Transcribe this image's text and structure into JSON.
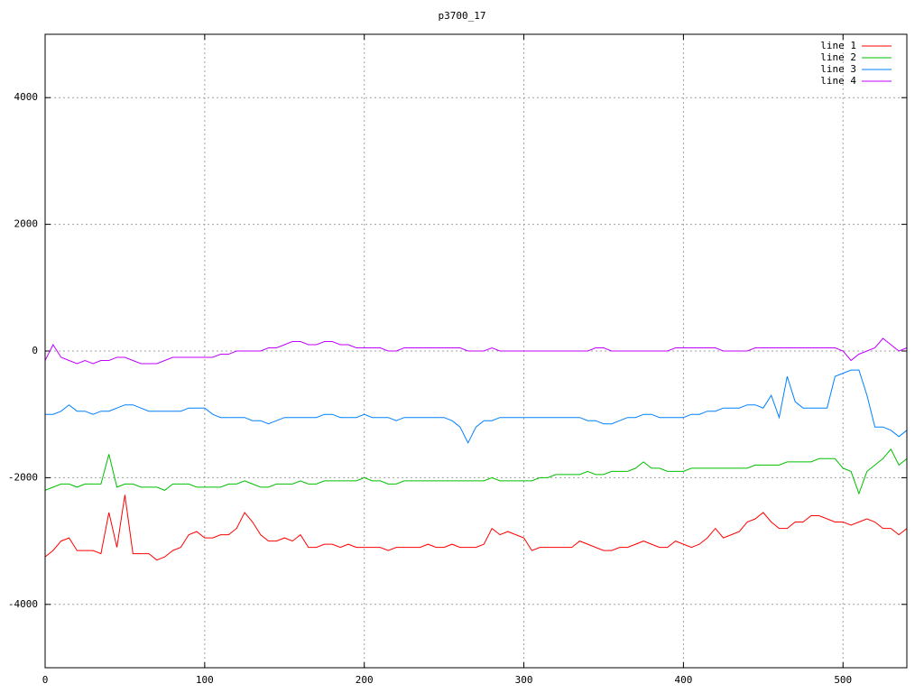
{
  "chart_data": {
    "type": "line",
    "title": "p3700_17",
    "x": [
      0,
      5,
      10,
      15,
      20,
      25,
      30,
      35,
      40,
      45,
      50,
      55,
      60,
      65,
      70,
      75,
      80,
      85,
      90,
      95,
      100,
      105,
      110,
      115,
      120,
      125,
      130,
      135,
      140,
      145,
      150,
      155,
      160,
      165,
      170,
      175,
      180,
      185,
      190,
      195,
      200,
      205,
      210,
      215,
      220,
      225,
      230,
      235,
      240,
      245,
      250,
      255,
      260,
      265,
      270,
      275,
      280,
      285,
      290,
      295,
      300,
      305,
      310,
      315,
      320,
      325,
      330,
      335,
      340,
      345,
      350,
      355,
      360,
      365,
      370,
      375,
      380,
      385,
      390,
      395,
      400,
      405,
      410,
      415,
      420,
      425,
      430,
      435,
      440,
      445,
      450,
      455,
      460,
      465,
      470,
      475,
      480,
      485,
      490,
      495,
      500,
      505,
      510,
      515,
      520,
      525,
      530,
      535,
      540
    ],
    "series": [
      {
        "name": "line 1",
        "color": "#ff0000",
        "values": [
          -3250,
          -3150,
          -3000,
          -2950,
          -3150,
          -3150,
          -3150,
          -3200,
          -2550,
          -3100,
          -2270,
          -3200,
          -3200,
          -3200,
          -3300,
          -3250,
          -3150,
          -3100,
          -2900,
          -2850,
          -2950,
          -2950,
          -2900,
          -2900,
          -2800,
          -2550,
          -2700,
          -2900,
          -3000,
          -3000,
          -2950,
          -3000,
          -2900,
          -3100,
          -3100,
          -3050,
          -3050,
          -3100,
          -3050,
          -3100,
          -3100,
          -3100,
          -3100,
          -3150,
          -3100,
          -3100,
          -3100,
          -3100,
          -3050,
          -3100,
          -3100,
          -3050,
          -3100,
          -3100,
          -3100,
          -3050,
          -2800,
          -2900,
          -2850,
          -2900,
          -2950,
          -3150,
          -3100,
          -3100,
          -3100,
          -3100,
          -3100,
          -3000,
          -3050,
          -3100,
          -3150,
          -3150,
          -3100,
          -3100,
          -3050,
          -3000,
          -3050,
          -3100,
          -3100,
          -3000,
          -3050,
          -3100,
          -3050,
          -2950,
          -2800,
          -2950,
          -2900,
          -2850,
          -2700,
          -2650,
          -2550,
          -2700,
          -2800,
          -2800,
          -2700,
          -2700,
          -2600,
          -2600,
          -2650,
          -2700,
          -2700,
          -2750,
          -2700,
          -2650,
          -2700,
          -2800,
          -2800,
          -2900,
          -2800
        ]
      },
      {
        "name": "line 2",
        "color": "#00c000",
        "values": [
          -2200,
          -2150,
          -2100,
          -2100,
          -2150,
          -2100,
          -2100,
          -2100,
          -1630,
          -2150,
          -2100,
          -2100,
          -2150,
          -2150,
          -2150,
          -2200,
          -2100,
          -2100,
          -2100,
          -2150,
          -2150,
          -2150,
          -2150,
          -2100,
          -2100,
          -2050,
          -2100,
          -2150,
          -2150,
          -2100,
          -2100,
          -2100,
          -2050,
          -2100,
          -2100,
          -2050,
          -2050,
          -2050,
          -2050,
          -2050,
          -2000,
          -2050,
          -2050,
          -2100,
          -2100,
          -2050,
          -2050,
          -2050,
          -2050,
          -2050,
          -2050,
          -2050,
          -2050,
          -2050,
          -2050,
          -2050,
          -2000,
          -2050,
          -2050,
          -2050,
          -2050,
          -2050,
          -2000,
          -2000,
          -1950,
          -1950,
          -1950,
          -1950,
          -1900,
          -1950,
          -1950,
          -1900,
          -1900,
          -1900,
          -1850,
          -1750,
          -1850,
          -1850,
          -1900,
          -1900,
          -1900,
          -1850,
          -1850,
          -1850,
          -1850,
          -1850,
          -1850,
          -1850,
          -1850,
          -1800,
          -1800,
          -1800,
          -1800,
          -1750,
          -1750,
          -1750,
          -1750,
          -1700,
          -1700,
          -1700,
          -1850,
          -1900,
          -2250,
          -1900,
          -1800,
          -1700,
          -1550,
          -1800,
          -1700
        ]
      },
      {
        "name": "line 3",
        "color": "#0080ff",
        "values": [
          -1000,
          -1000,
          -950,
          -850,
          -950,
          -950,
          -1000,
          -950,
          -950,
          -900,
          -850,
          -850,
          -900,
          -950,
          -950,
          -950,
          -950,
          -950,
          -900,
          -900,
          -900,
          -1000,
          -1050,
          -1050,
          -1050,
          -1050,
          -1100,
          -1100,
          -1150,
          -1100,
          -1050,
          -1050,
          -1050,
          -1050,
          -1050,
          -1000,
          -1000,
          -1050,
          -1050,
          -1050,
          -1000,
          -1050,
          -1050,
          -1050,
          -1100,
          -1050,
          -1050,
          -1050,
          -1050,
          -1050,
          -1050,
          -1100,
          -1200,
          -1450,
          -1200,
          -1100,
          -1100,
          -1050,
          -1050,
          -1050,
          -1050,
          -1050,
          -1050,
          -1050,
          -1050,
          -1050,
          -1050,
          -1050,
          -1100,
          -1100,
          -1150,
          -1150,
          -1100,
          -1050,
          -1050,
          -1000,
          -1000,
          -1050,
          -1050,
          -1050,
          -1050,
          -1000,
          -1000,
          -950,
          -950,
          -900,
          -900,
          -900,
          -850,
          -850,
          -900,
          -700,
          -1050,
          -400,
          -800,
          -900,
          -900,
          -900,
          -900,
          -400,
          -350,
          -300,
          -300,
          -700,
          -1200,
          -1200,
          -1250,
          -1350,
          -1250
        ]
      },
      {
        "name": "line 4",
        "color": "#c000ff",
        "values": [
          -150,
          100,
          -100,
          -150,
          -200,
          -150,
          -200,
          -150,
          -150,
          -100,
          -100,
          -150,
          -200,
          -200,
          -200,
          -150,
          -100,
          -100,
          -100,
          -100,
          -100,
          -100,
          -50,
          -50,
          0,
          0,
          0,
          0,
          50,
          50,
          100,
          150,
          150,
          100,
          100,
          150,
          150,
          100,
          100,
          50,
          50,
          50,
          50,
          0,
          0,
          50,
          50,
          50,
          50,
          50,
          50,
          50,
          50,
          0,
          0,
          0,
          50,
          0,
          0,
          0,
          0,
          0,
          0,
          0,
          0,
          0,
          0,
          0,
          0,
          50,
          50,
          0,
          0,
          0,
          0,
          0,
          0,
          0,
          0,
          50,
          50,
          50,
          50,
          50,
          50,
          0,
          0,
          0,
          0,
          50,
          50,
          50,
          50,
          50,
          50,
          50,
          50,
          50,
          50,
          50,
          0,
          -150,
          -50,
          0,
          50,
          200,
          100,
          0,
          50
        ]
      }
    ],
    "xlim": [
      0,
      540
    ],
    "xticks": [
      0,
      100,
      200,
      300,
      400,
      500
    ],
    "ylim": [
      -5000,
      5000
    ],
    "yticks": [
      -4000,
      -2000,
      0,
      2000,
      4000
    ],
    "grid": true,
    "legend": "top-right"
  }
}
